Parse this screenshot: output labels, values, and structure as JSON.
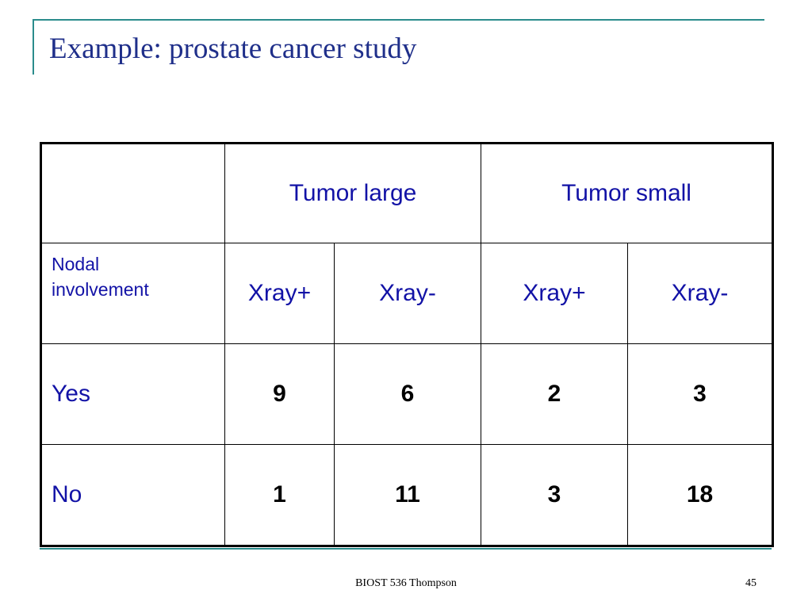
{
  "slide": {
    "title": "Example: prostate cancer study",
    "footer": "BIOST 536 Thompson",
    "page_number": "45",
    "accent_color": "#2b8c8c",
    "text_color": "#1212a6"
  },
  "table": {
    "groups": [
      "Tumor large",
      "Tumor small"
    ],
    "row_header_label": "Nodal involvement",
    "row_header_label_lines": [
      "Nodal",
      "involvement"
    ],
    "columns": [
      "Xray+",
      "Xray-",
      "Xray+",
      "Xray-"
    ],
    "rows": [
      {
        "label": "Yes",
        "values": [
          "9",
          "6",
          "2",
          "3"
        ]
      },
      {
        "label": "No",
        "values": [
          "1",
          "11",
          "3",
          "18"
        ]
      }
    ]
  }
}
